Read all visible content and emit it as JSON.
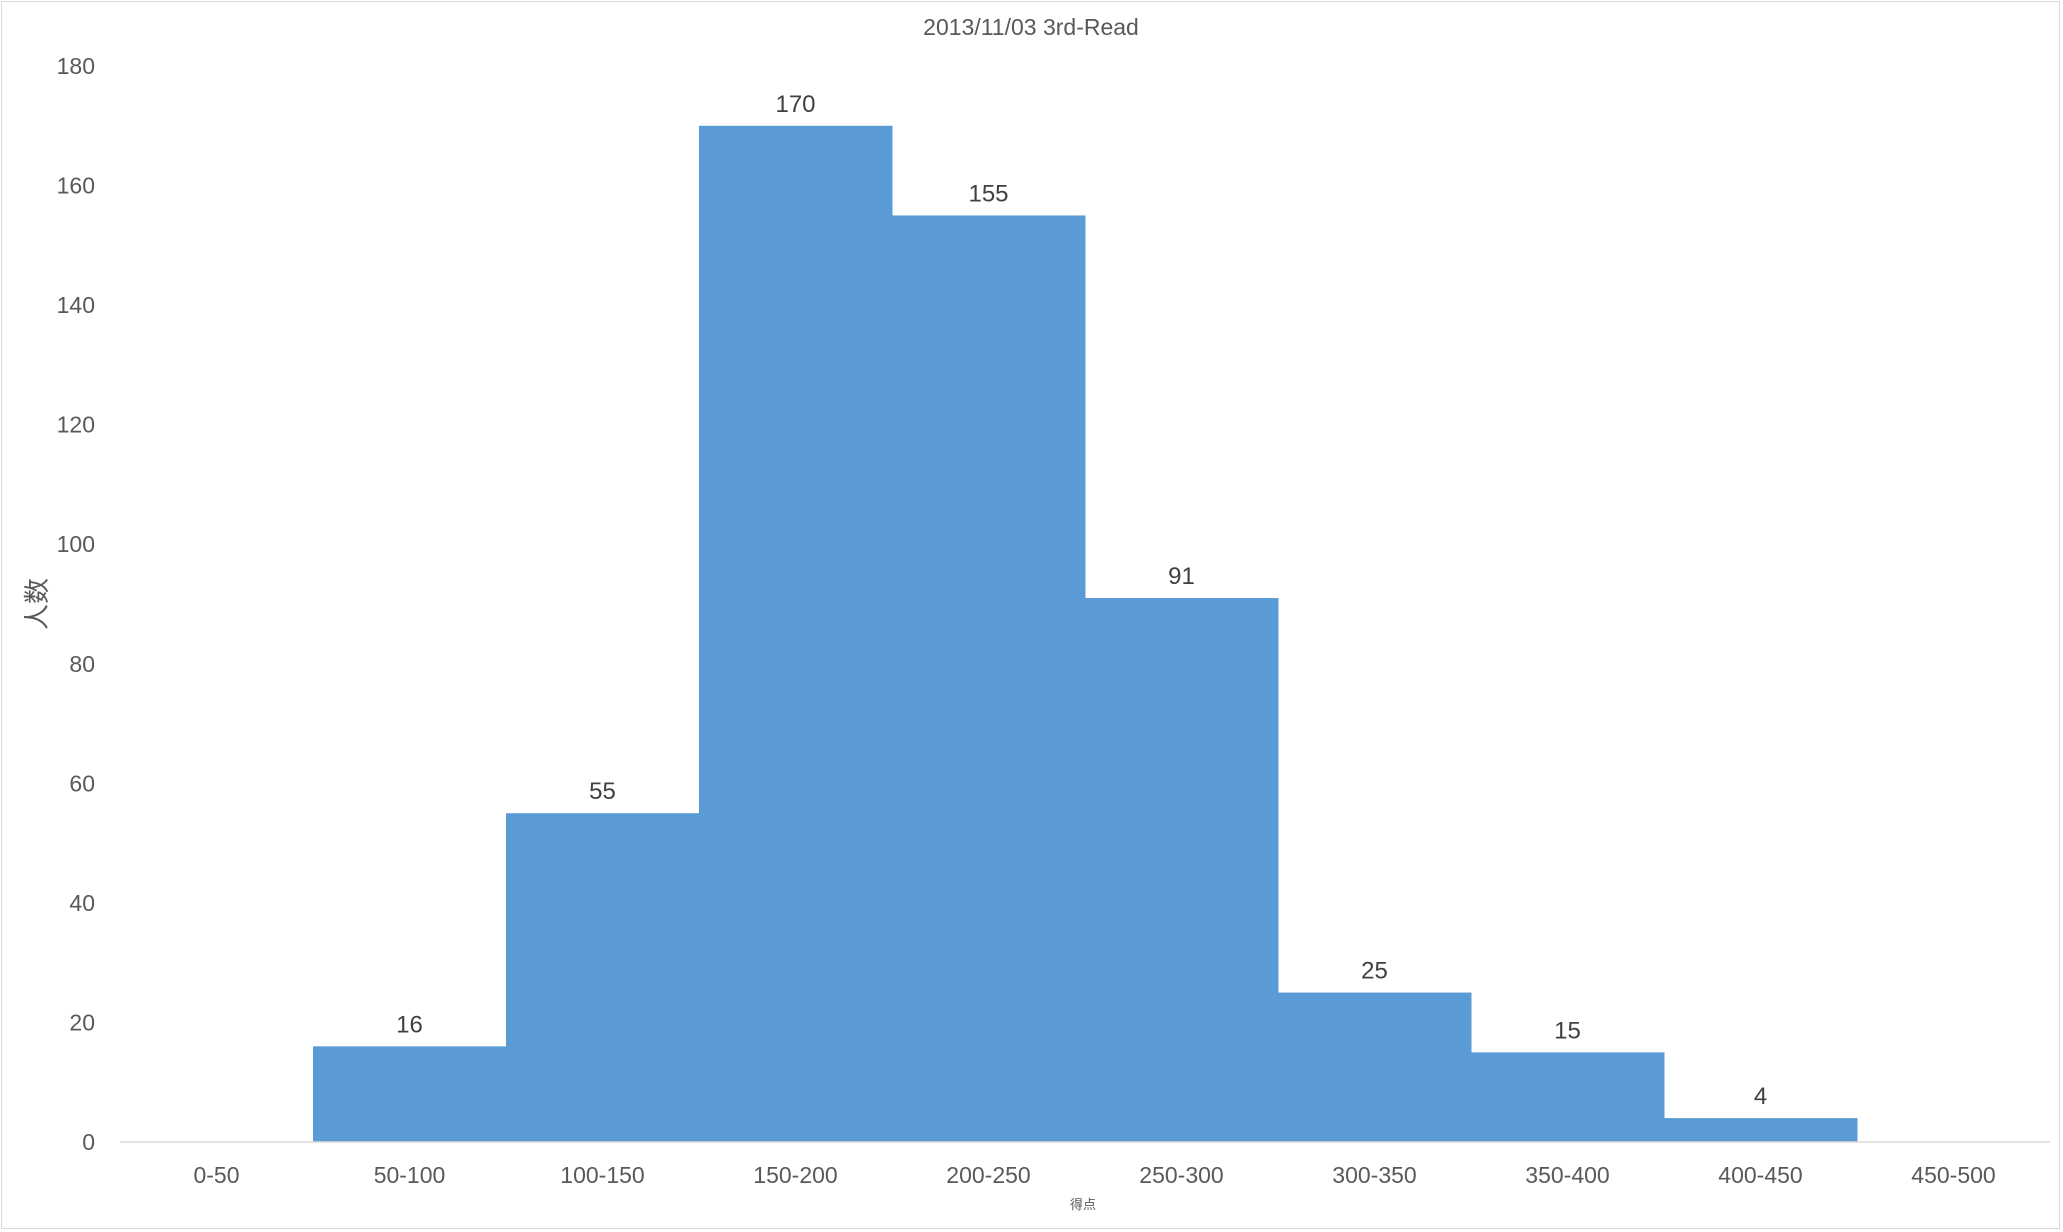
{
  "chart_data": {
    "type": "bar",
    "title": "2013/11/03 3rd-Read",
    "xlabel": "得点",
    "ylabel": "人数",
    "categories": [
      "0-50",
      "50-100",
      "100-150",
      "150-200",
      "200-250",
      "250-300",
      "300-350",
      "350-400",
      "400-450",
      "450-500"
    ],
    "series": [
      {
        "values": [
          0,
          16,
          55,
          170,
          155,
          91,
          25,
          15,
          4,
          0
        ]
      }
    ],
    "data_labels": [
      "",
      "16",
      "55",
      "170",
      "155",
      "91",
      "25",
      "15",
      "4",
      ""
    ],
    "yticks": [
      "0",
      "20",
      "40",
      "60",
      "80",
      "100",
      "120",
      "140",
      "160",
      "180"
    ],
    "ylim": [
      0,
      180
    ],
    "grid": false,
    "bar_gap": 0,
    "bar_color": "#5B9BD5"
  }
}
